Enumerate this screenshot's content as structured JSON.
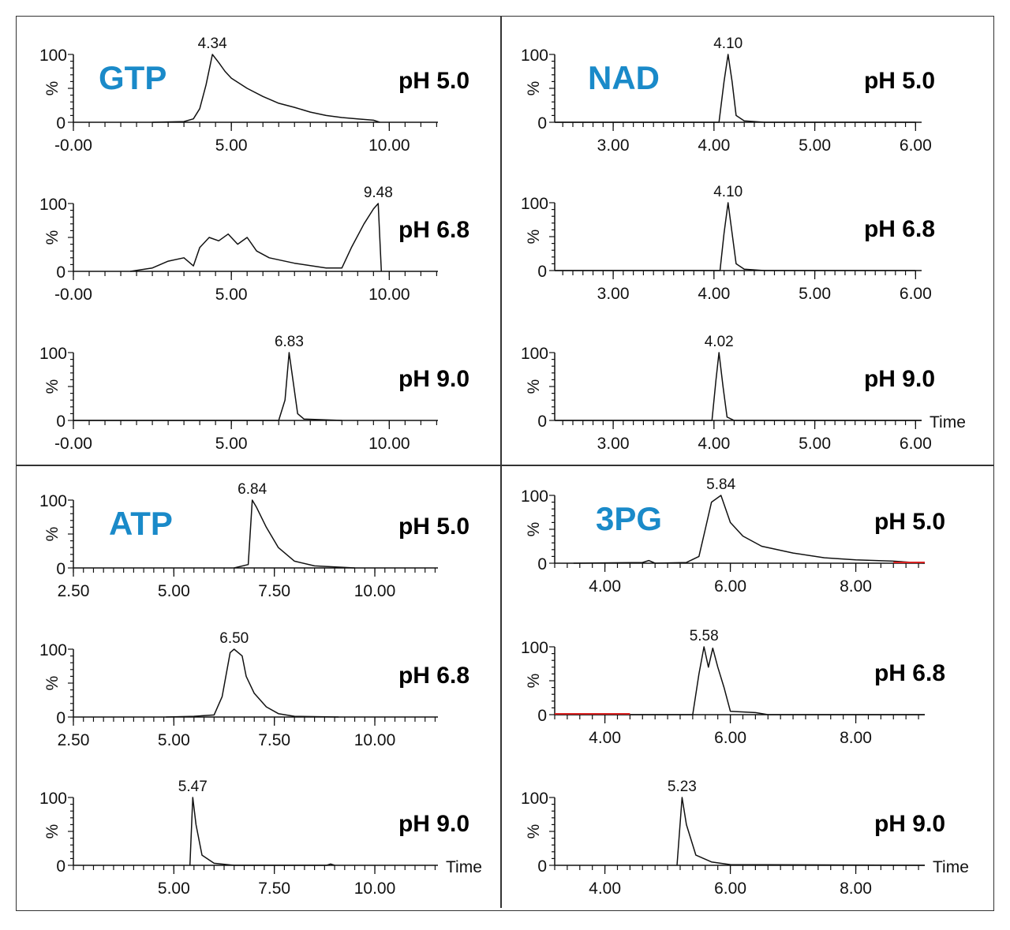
{
  "colors": {
    "compound": "#1a8ac9",
    "trace": "#111111",
    "highlight": "#d62020",
    "frame": "#333333"
  },
  "chart_data": [
    {
      "type": "line",
      "compound": "GTP",
      "condition": "pH 5.0",
      "peak_label": "4.34",
      "xlim": [
        0,
        11.54
      ],
      "ylim": [
        0,
        100
      ],
      "xticks": [
        0,
        5,
        10
      ],
      "xtick_labels": [
        "-0.00",
        "5.00",
        "10.00"
      ],
      "minor_step": 0.5,
      "ytick_labels": [
        "0",
        "100"
      ],
      "ylabel": "%",
      "xlabel": "",
      "points": [
        [
          2.5,
          0
        ],
        [
          3.5,
          1
        ],
        [
          3.8,
          5
        ],
        [
          4.0,
          20
        ],
        [
          4.2,
          55
        ],
        [
          4.4,
          100
        ],
        [
          4.6,
          88
        ],
        [
          4.8,
          75
        ],
        [
          5.0,
          65
        ],
        [
          5.5,
          50
        ],
        [
          6.0,
          38
        ],
        [
          6.5,
          28
        ],
        [
          7.0,
          22
        ],
        [
          7.5,
          15
        ],
        [
          8.0,
          10
        ],
        [
          8.5,
          7
        ],
        [
          9.0,
          5
        ],
        [
          9.5,
          3
        ],
        [
          9.7,
          0
        ]
      ]
    },
    {
      "type": "line",
      "compound": "",
      "condition": "pH 6.8",
      "peak_label": "9.48",
      "xlim": [
        0,
        11.54
      ],
      "ylim": [
        0,
        100
      ],
      "xticks": [
        0,
        5,
        10
      ],
      "xtick_labels": [
        "-0.00",
        "5.00",
        "10.00"
      ],
      "minor_step": 0.5,
      "ytick_labels": [
        "0",
        "100"
      ],
      "ylabel": "%",
      "xlabel": "",
      "points": [
        [
          1.8,
          0
        ],
        [
          2.5,
          5
        ],
        [
          3.0,
          15
        ],
        [
          3.5,
          20
        ],
        [
          3.8,
          8
        ],
        [
          4.0,
          35
        ],
        [
          4.3,
          50
        ],
        [
          4.6,
          45
        ],
        [
          4.9,
          55
        ],
        [
          5.2,
          40
        ],
        [
          5.5,
          50
        ],
        [
          5.8,
          30
        ],
        [
          6.2,
          20
        ],
        [
          7.0,
          12
        ],
        [
          8.0,
          5
        ],
        [
          8.5,
          5
        ],
        [
          8.8,
          35
        ],
        [
          9.2,
          70
        ],
        [
          9.5,
          92
        ],
        [
          9.65,
          100
        ],
        [
          9.75,
          0
        ]
      ]
    },
    {
      "type": "line",
      "compound": "",
      "condition": "pH 9.0",
      "peak_label": "6.83",
      "xlim": [
        0,
        11.54
      ],
      "ylim": [
        0,
        100
      ],
      "xticks": [
        0,
        5,
        10
      ],
      "xtick_labels": [
        "-0.00",
        "5.00",
        "10.00"
      ],
      "minor_step": 0.5,
      "ytick_labels": [
        "0",
        "100"
      ],
      "ylabel": "%",
      "xlabel": "",
      "points": [
        [
          0,
          0
        ],
        [
          6.5,
          0
        ],
        [
          6.7,
          30
        ],
        [
          6.83,
          100
        ],
        [
          6.95,
          60
        ],
        [
          7.1,
          10
        ],
        [
          7.3,
          2
        ],
        [
          8.5,
          0
        ]
      ]
    },
    {
      "type": "line",
      "compound": "NAD",
      "condition": "pH 5.0",
      "peak_label": "4.10",
      "xlim": [
        2.42,
        6.06
      ],
      "ylim": [
        0,
        100
      ],
      "xticks": [
        3,
        4,
        5,
        6
      ],
      "xtick_labels": [
        "3.00",
        "4.00",
        "5.00",
        "6.00"
      ],
      "minor_step": 0.1,
      "ytick_labels": [
        "0",
        "100"
      ],
      "ylabel": "%",
      "xlabel": "",
      "points": [
        [
          2.42,
          0
        ],
        [
          4.05,
          0
        ],
        [
          4.1,
          60
        ],
        [
          4.14,
          100
        ],
        [
          4.18,
          60
        ],
        [
          4.22,
          10
        ],
        [
          4.3,
          2
        ],
        [
          4.5,
          0
        ],
        [
          6.0,
          0
        ]
      ]
    },
    {
      "type": "line",
      "compound": "",
      "condition": "pH 6.8",
      "peak_label": "4.10",
      "xlim": [
        2.42,
        6.06
      ],
      "ylim": [
        0,
        100
      ],
      "xticks": [
        3,
        4,
        5,
        6
      ],
      "xtick_labels": [
        "3.00",
        "4.00",
        "5.00",
        "6.00"
      ],
      "minor_step": 0.1,
      "ytick_labels": [
        "0",
        "100"
      ],
      "ylabel": "%",
      "xlabel": "",
      "points": [
        [
          2.42,
          0
        ],
        [
          4.06,
          0
        ],
        [
          4.1,
          55
        ],
        [
          4.14,
          100
        ],
        [
          4.18,
          55
        ],
        [
          4.22,
          10
        ],
        [
          4.3,
          2
        ],
        [
          4.5,
          0
        ],
        [
          6.0,
          0
        ]
      ]
    },
    {
      "type": "line",
      "compound": "",
      "condition": "pH 9.0",
      "peak_label": "4.02",
      "xlim": [
        2.42,
        6.06
      ],
      "ylim": [
        0,
        100
      ],
      "xticks": [
        3,
        4,
        5,
        6
      ],
      "xtick_labels": [
        "3.00",
        "4.00",
        "5.00",
        "6.00"
      ],
      "minor_step": 0.1,
      "ytick_labels": [
        "0",
        "100"
      ],
      "ylabel": "%",
      "xlabel": "Time",
      "points": [
        [
          2.42,
          0
        ],
        [
          3.98,
          0
        ],
        [
          4.02,
          60
        ],
        [
          4.05,
          100
        ],
        [
          4.09,
          50
        ],
        [
          4.13,
          5
        ],
        [
          4.2,
          0
        ],
        [
          6.06,
          0
        ]
      ]
    },
    {
      "type": "line",
      "compound": "ATP",
      "condition": "pH 5.0",
      "peak_label": "6.84",
      "xlim": [
        2.5,
        11.57
      ],
      "ylim": [
        0,
        100
      ],
      "xticks": [
        2.5,
        5,
        7.5,
        10
      ],
      "xtick_labels": [
        "2.50",
        "5.00",
        "7.50",
        "10.00"
      ],
      "minor_step": 0.25,
      "ytick_labels": [
        "0",
        "100"
      ],
      "ylabel": "%",
      "xlabel": "",
      "points": [
        [
          6.5,
          0
        ],
        [
          6.85,
          5
        ],
        [
          6.95,
          100
        ],
        [
          7.05,
          90
        ],
        [
          7.3,
          60
        ],
        [
          7.6,
          30
        ],
        [
          8.0,
          10
        ],
        [
          8.5,
          3
        ],
        [
          9.5,
          0
        ]
      ]
    },
    {
      "type": "line",
      "compound": "",
      "condition": "pH 6.8",
      "peak_label": "6.50",
      "xlim": [
        2.5,
        11.57
      ],
      "ylim": [
        0,
        100
      ],
      "xticks": [
        2.5,
        5,
        7.5,
        10
      ],
      "xtick_labels": [
        "2.50",
        "5.00",
        "7.50",
        "10.00"
      ],
      "minor_step": 0.25,
      "ytick_labels": [
        "0",
        "100"
      ],
      "ylabel": "%",
      "xlabel": "",
      "points": [
        [
          4.8,
          0
        ],
        [
          5.5,
          1
        ],
        [
          6.0,
          3
        ],
        [
          6.2,
          30
        ],
        [
          6.4,
          95
        ],
        [
          6.5,
          100
        ],
        [
          6.7,
          90
        ],
        [
          6.8,
          60
        ],
        [
          7.0,
          35
        ],
        [
          7.3,
          15
        ],
        [
          7.6,
          5
        ],
        [
          8.0,
          1
        ],
        [
          9.1,
          0
        ]
      ]
    },
    {
      "type": "line",
      "compound": "",
      "condition": "pH 9.0",
      "peak_label": "5.47",
      "xlim": [
        2.5,
        11.57
      ],
      "ylim": [
        0,
        100
      ],
      "xticks": [
        5,
        7.5,
        10
      ],
      "xtick_labels": [
        "5.00",
        "7.50",
        "10.00"
      ],
      "minor_step": 0.25,
      "ytick_labels": [
        "0",
        "100"
      ],
      "ylabel": "%",
      "xlabel": "Time",
      "points": [
        [
          5.4,
          0
        ],
        [
          5.47,
          100
        ],
        [
          5.55,
          60
        ],
        [
          5.7,
          15
        ],
        [
          6.0,
          3
        ],
        [
          6.5,
          0
        ],
        [
          8.8,
          0
        ],
        [
          8.9,
          2
        ],
        [
          9.0,
          0
        ]
      ]
    },
    {
      "type": "line",
      "compound": "3PG",
      "condition": "pH 5.0",
      "peak_label": "5.84",
      "xlim": [
        3.2,
        9.1
      ],
      "ylim": [
        0,
        100
      ],
      "xticks": [
        4,
        6,
        8
      ],
      "xtick_labels": [
        "4.00",
        "6.00",
        "8.00"
      ],
      "minor_step": 0.2,
      "ytick_labels": [
        "0",
        "100"
      ],
      "ylabel": "%",
      "xlabel": "",
      "highlight_range": [
        8.6,
        9.1
      ],
      "points": [
        [
          3.5,
          0
        ],
        [
          4.6,
          1
        ],
        [
          4.7,
          4
        ],
        [
          4.8,
          0
        ],
        [
          5.3,
          1
        ],
        [
          5.5,
          10
        ],
        [
          5.6,
          50
        ],
        [
          5.7,
          90
        ],
        [
          5.85,
          100
        ],
        [
          6.0,
          60
        ],
        [
          6.2,
          40
        ],
        [
          6.5,
          25
        ],
        [
          7.0,
          15
        ],
        [
          7.5,
          8
        ],
        [
          8.0,
          5
        ],
        [
          8.6,
          3
        ],
        [
          9.1,
          0
        ]
      ]
    },
    {
      "type": "line",
      "compound": "",
      "condition": "pH 6.8",
      "peak_label": "5.58",
      "xlim": [
        3.2,
        9.1
      ],
      "ylim": [
        0,
        100
      ],
      "xticks": [
        4,
        6,
        8
      ],
      "xtick_labels": [
        "4.00",
        "6.00",
        "8.00"
      ],
      "minor_step": 0.2,
      "ytick_labels": [
        "0",
        "100"
      ],
      "ylabel": "%",
      "xlabel": "",
      "highlight_range": [
        3.2,
        4.4
      ],
      "points": [
        [
          3.2,
          0
        ],
        [
          5.4,
          0
        ],
        [
          5.5,
          60
        ],
        [
          5.58,
          100
        ],
        [
          5.65,
          70
        ],
        [
          5.72,
          98
        ],
        [
          5.8,
          70
        ],
        [
          5.9,
          40
        ],
        [
          6.0,
          5
        ],
        [
          6.4,
          3
        ],
        [
          6.6,
          0
        ],
        [
          9.1,
          0
        ]
      ]
    },
    {
      "type": "line",
      "compound": "",
      "condition": "pH 9.0",
      "peak_label": "5.23",
      "xlim": [
        3.2,
        9.1
      ],
      "ylim": [
        0,
        100
      ],
      "xticks": [
        4,
        6,
        8
      ],
      "xtick_labels": [
        "4.00",
        "6.00",
        "8.00"
      ],
      "minor_step": 0.2,
      "ytick_labels": [
        "0",
        "100"
      ],
      "ylabel": "%",
      "xlabel": "Time",
      "points": [
        [
          5.15,
          0
        ],
        [
          5.23,
          100
        ],
        [
          5.3,
          60
        ],
        [
          5.45,
          15
        ],
        [
          5.7,
          5
        ],
        [
          6.0,
          1
        ],
        [
          9.1,
          0
        ]
      ]
    }
  ]
}
